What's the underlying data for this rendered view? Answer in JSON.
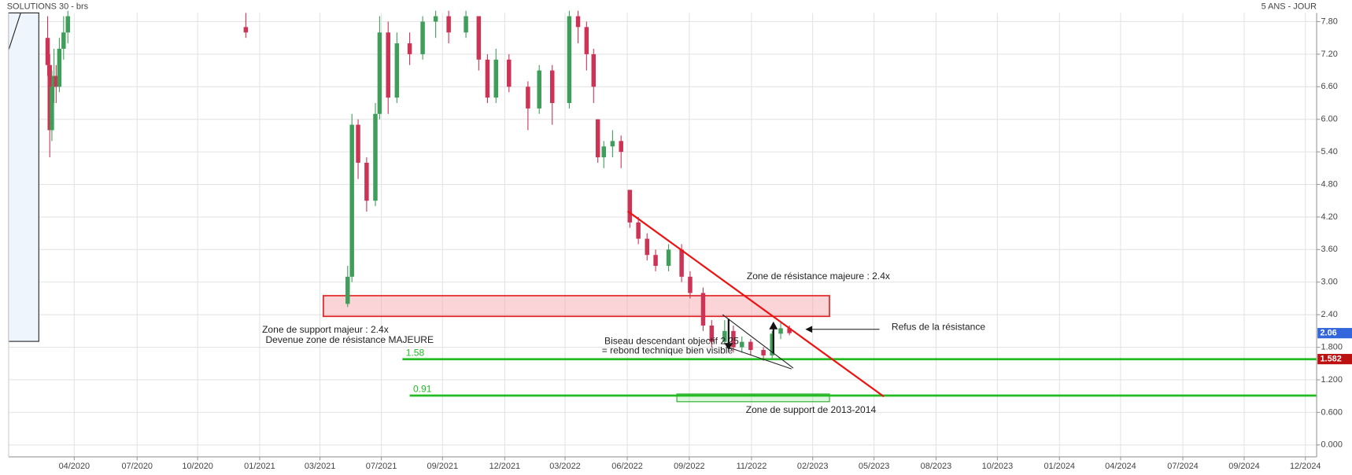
{
  "chart_data": {
    "type": "candlestick",
    "title": "SOLUTIONS 30 - brs",
    "period": "5 ANS - JOUR",
    "up_color": "#3f9e5a",
    "down_color": "#cc3355",
    "grid": true,
    "x": [
      1.75,
      1.85,
      1.95,
      2.05,
      2.15,
      2.3,
      2.5,
      2.7,
      11.05,
      15.83,
      16.03,
      16.32,
      16.72,
      17.13,
      17.33,
      17.73,
      18.14,
      18.74,
      19.35,
      19.96,
      20.57,
      21.38,
      21.98,
      22.39,
      22.79,
      23.4,
      24.29,
      24.82,
      25.43,
      26.23,
      26.64,
      27.04,
      27.37,
      27.57,
      27.85,
      28.26,
      28.66,
      29.07,
      29.47,
      29.88,
      30.28,
      30.89,
      31.5,
      31.9,
      32.51,
      32.91,
      33.52,
      33.93,
      34.33,
      34.74,
      35.34,
      35.75,
      36.15,
      36.56
    ],
    "open": [
      7.5,
      7.0,
      5.8,
      6.6,
      6.8,
      6.6,
      7.3,
      7.6,
      7.7,
      2.6,
      3.1,
      5.9,
      5.2,
      4.5,
      6.1,
      7.6,
      6.4,
      7.4,
      7.2,
      7.8,
      7.9,
      7.6,
      7.9,
      7.1,
      6.4,
      7.1,
      6.6,
      6.2,
      6.9,
      6.3,
      7.9,
      7.7,
      7.2,
      6.0,
      5.3,
      5.5,
      5.6,
      4.7,
      4.1,
      3.8,
      3.5,
      3.3,
      3.6,
      3.1,
      2.8,
      2.2,
      1.9,
      2.1,
      1.8,
      1.9,
      1.75,
      1.65,
      2.05,
      2.15
    ],
    "high": [
      7.9,
      7.2,
      6.9,
      7.3,
      7.0,
      7.5,
      7.9,
      8.0,
      7.96,
      3.3,
      6.1,
      6.0,
      5.3,
      6.3,
      7.9,
      7.8,
      7.6,
      7.6,
      7.9,
      8.0,
      8.0,
      8.0,
      7.9,
      7.2,
      7.3,
      7.2,
      6.7,
      7.0,
      7.0,
      8.0,
      8.0,
      7.8,
      7.3,
      6.0,
      5.6,
      5.8,
      5.7,
      4.7,
      4.2,
      3.9,
      3.6,
      3.7,
      3.7,
      3.2,
      2.9,
      2.3,
      2.3,
      2.2,
      2.0,
      1.95,
      1.8,
      2.1,
      2.25,
      2.2
    ],
    "low": [
      6.8,
      5.3,
      5.6,
      6.3,
      6.3,
      6.5,
      7.1,
      7.4,
      7.5,
      2.54,
      3.0,
      4.9,
      4.3,
      4.4,
      6.0,
      6.1,
      6.3,
      7.0,
      7.1,
      7.5,
      7.4,
      7.5,
      6.9,
      6.3,
      6.3,
      6.5,
      5.8,
      6.1,
      5.9,
      6.2,
      7.4,
      6.9,
      6.3,
      5.2,
      5.1,
      5.3,
      5.1,
      4.0,
      3.7,
      3.4,
      3.2,
      3.2,
      3.0,
      2.7,
      2.1,
      1.8,
      1.85,
      1.7,
      1.7,
      1.65,
      1.55,
      1.6,
      1.95,
      2.02
    ],
    "close": [
      7.0,
      5.8,
      6.6,
      6.8,
      6.6,
      7.3,
      7.6,
      7.9,
      7.6,
      3.1,
      5.9,
      5.2,
      4.5,
      6.1,
      7.6,
      6.4,
      7.4,
      7.2,
      7.8,
      7.9,
      7.6,
      7.9,
      7.1,
      6.4,
      7.1,
      6.6,
      6.2,
      6.9,
      6.3,
      7.9,
      7.7,
      7.2,
      6.6,
      5.3,
      5.5,
      5.6,
      5.4,
      4.1,
      3.8,
      3.5,
      3.3,
      3.6,
      3.1,
      2.8,
      2.2,
      1.9,
      2.1,
      1.8,
      1.9,
      1.75,
      1.65,
      2.05,
      2.15,
      2.06
    ],
    "xlim": [
      -0.08,
      61.3
    ],
    "xticks": [
      {
        "value": 3.0,
        "label": "04/2020"
      },
      {
        "value": 5.95,
        "label": "07/2020"
      },
      {
        "value": 8.79,
        "label": "10/2020"
      },
      {
        "value": 11.7,
        "label": "01/2021"
      },
      {
        "value": 14.53,
        "label": "03/2021"
      },
      {
        "value": 17.41,
        "label": "07/2021"
      },
      {
        "value": 20.28,
        "label": "09/2021"
      },
      {
        "value": 23.2,
        "label": "12/2021"
      },
      {
        "value": 26.03,
        "label": "03/2022"
      },
      {
        "value": 28.95,
        "label": "06/2022"
      },
      {
        "value": 31.86,
        "label": "09/2022"
      },
      {
        "value": 34.78,
        "label": "11/2022"
      },
      {
        "value": 37.65,
        "label": "02/2023"
      },
      {
        "value": 40.53,
        "label": "05/2023"
      },
      {
        "value": 43.44,
        "label": "08/2023"
      },
      {
        "value": 46.32,
        "label": "10/2023"
      },
      {
        "value": 49.23,
        "label": "01/2024"
      },
      {
        "value": 52.1,
        "label": "04/2024"
      },
      {
        "value": 55.02,
        "label": "07/2024"
      },
      {
        "value": 57.9,
        "label": "09/2024"
      },
      {
        "value": 60.77,
        "label": "12/2024"
      }
    ],
    "ylim": [
      -0.22,
      7.96
    ],
    "yticks": [
      {
        "value": 0,
        "label": "0.000"
      },
      {
        "value": 0.6,
        "label": "0.600"
      },
      {
        "value": 1.2,
        "label": "1.200"
      },
      {
        "value": 1.8,
        "label": "1.800"
      },
      {
        "value": 2.4,
        "label": "2.40"
      },
      {
        "value": 3.0,
        "label": "3.00"
      },
      {
        "value": 3.6,
        "label": "3.60"
      },
      {
        "value": 4.2,
        "label": "4.20"
      },
      {
        "value": 4.8,
        "label": "4.80"
      },
      {
        "value": 5.4,
        "label": "5.40"
      },
      {
        "value": 6.0,
        "label": "6.00"
      },
      {
        "value": 6.6,
        "label": "6.60"
      },
      {
        "value": 7.2,
        "label": "7.20"
      },
      {
        "value": 7.8,
        "label": "7.80"
      }
    ],
    "levels": [
      {
        "value": 1.58,
        "start": 18.4,
        "color": "#22bb22"
      },
      {
        "value": 0.91,
        "start": 18.74,
        "color": "#22bb22"
      }
    ],
    "last_price": 2.06,
    "last_price_color": "#3366dd",
    "level_price": 1.582,
    "level_price_color": "#bb1111",
    "annotations": {
      "resistance": "Zone de résistance majeure : 2.4x",
      "refusal": "Refus de la résistance",
      "support": "Zone de support majeur : 2.4x",
      "support_now": "Devenue zone de résistance MAJEURE",
      "wedge": "Biseau descendant objectif 2.25",
      "wedge_note": "= rebond technique bien visible",
      "old_support": "Zone de support de 2013-2014"
    }
  }
}
